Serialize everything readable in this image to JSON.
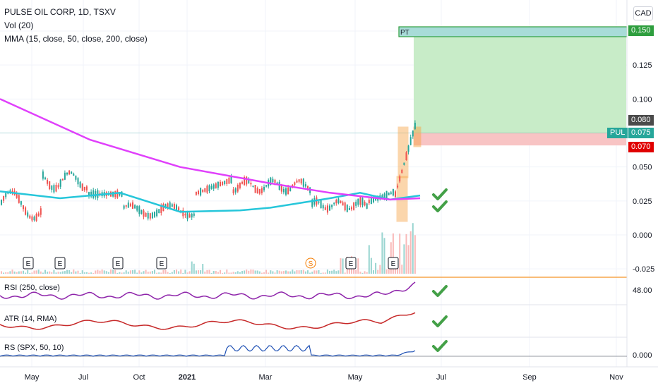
{
  "header": {
    "title": "PULSE OIL CORP, 1D, TSXV",
    "indicator_vol": "Vol (20)",
    "indicator_mma": "MMA (15, close, 50, close, 200, close)",
    "currency": "CAD"
  },
  "price_axis": {
    "ticks": [
      "0.150",
      "0.125",
      "0.100",
      "0.080",
      "0.075",
      "0.070",
      "0.050",
      "0.025",
      "0.000",
      "-0.025"
    ],
    "symbol_tag": "PUL"
  },
  "trade_setup": {
    "label": "PT",
    "target": 0.15,
    "entry": 0.075,
    "stop": 0.07,
    "marker_high": 0.08,
    "target_label": "0.150",
    "marker_label": "0.080",
    "entry_label": "0.075",
    "stop_label": "0.070"
  },
  "colors": {
    "up": "#26a69a",
    "down": "#ef5350",
    "ma_fast": "#26c6da",
    "ma_slow": "#e040fb",
    "rsi": "#8e24aa",
    "atr": "#c62828",
    "rs": "#1e50b4",
    "target_zone": "#c8ecc8",
    "stop_zone": "#f8c4c4",
    "check": "#43a047",
    "highlight": "#f7a64a"
  },
  "events": [
    "E",
    "E",
    "E",
    "E",
    "S",
    "E",
    "E"
  ],
  "panes": {
    "rsi": {
      "label": "RSI (250, close)",
      "value": "48.00"
    },
    "atr": {
      "label": "ATR (14, RMA)"
    },
    "rs": {
      "label": "RS (SPX, 50, 10)",
      "value": "0.000"
    }
  },
  "time_axis": [
    "May",
    "Jul",
    "Oct",
    "2021",
    "Mar",
    "May",
    "Jul",
    "Sep",
    "Nov"
  ],
  "chart_data": {
    "type": "candlestick",
    "title": "PULSE OIL CORP, 1D, TSXV",
    "ylim": [
      -0.025,
      0.15
    ],
    "x_range": [
      "2020-04",
      "2021-11"
    ],
    "series": [
      {
        "name": "MMA 50",
        "approx_path": [
          [
            "2020-04",
            0.032
          ],
          [
            "2020-06",
            0.027
          ],
          [
            "2020-08",
            0.031
          ],
          [
            "2020-10",
            0.017
          ],
          [
            "2020-12",
            0.018
          ],
          [
            "2021-01",
            0.02
          ],
          [
            "2021-03",
            0.027
          ],
          [
            "2021-04",
            0.031
          ],
          [
            "2021-05",
            0.026
          ],
          [
            "2021-06",
            0.029
          ]
        ]
      },
      {
        "name": "MMA 200",
        "approx_path": [
          [
            "2020-04",
            0.1
          ],
          [
            "2020-07",
            0.07
          ],
          [
            "2020-10",
            0.05
          ],
          [
            "2021-01",
            0.038
          ],
          [
            "2021-03",
            0.031
          ],
          [
            "2021-05",
            0.026
          ],
          [
            "2021-06",
            0.027
          ]
        ]
      }
    ],
    "last_price": 0.075
  }
}
